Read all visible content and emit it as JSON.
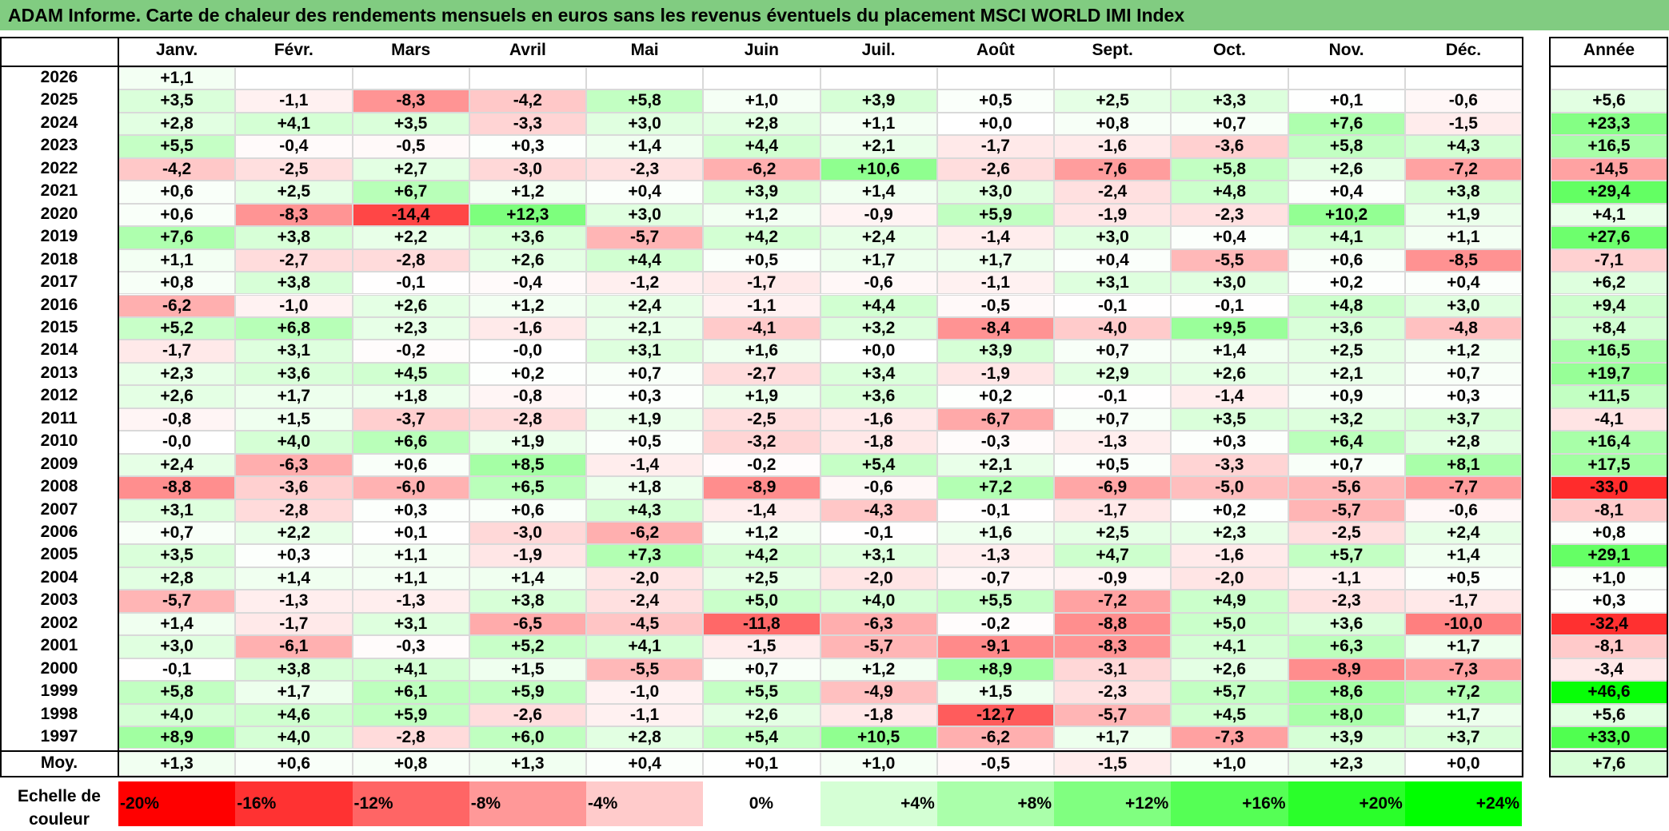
{
  "title": "ADAM Informe. Carte de chaleur des rendements mensuels en euros sans les revenus éventuels du placement MSCI WORLD IMI Index",
  "chart_data": {
    "type": "heatmap",
    "columns": [
      "Janv.",
      "Févr.",
      "Mars",
      "Avril",
      "Mai",
      "Juin",
      "Juil.",
      "Août",
      "Sept.",
      "Oct.",
      "Nov.",
      "Déc."
    ],
    "year_column": "Année",
    "rows": [
      {
        "label": "2026",
        "values": [
          "+1,1",
          "",
          "",
          "",
          "",
          "",
          "",
          "",
          "",
          "",
          "",
          ""
        ],
        "year": ""
      },
      {
        "label": "2025",
        "values": [
          "+3,5",
          "-1,1",
          "-8,3",
          "-4,2",
          "+5,8",
          "+1,0",
          "+3,9",
          "+0,5",
          "+2,5",
          "+3,3",
          "+0,1",
          "-0,6"
        ],
        "year": "+5,6"
      },
      {
        "label": "2024",
        "values": [
          "+2,8",
          "+4,1",
          "+3,5",
          "-3,3",
          "+3,0",
          "+2,8",
          "+1,1",
          "+0,0",
          "+0,8",
          "+0,7",
          "+7,6",
          "-1,5"
        ],
        "year": "+23,3"
      },
      {
        "label": "2023",
        "values": [
          "+5,5",
          "-0,4",
          "-0,5",
          "+0,3",
          "+1,4",
          "+4,4",
          "+2,1",
          "-1,7",
          "-1,6",
          "-3,6",
          "+5,8",
          "+4,3"
        ],
        "year": "+16,5"
      },
      {
        "label": "2022",
        "values": [
          "-4,2",
          "-2,5",
          "+2,7",
          "-3,0",
          "-2,3",
          "-6,2",
          "+10,6",
          "-2,6",
          "-7,6",
          "+5,8",
          "+2,6",
          "-7,2"
        ],
        "year": "-14,5"
      },
      {
        "label": "2021",
        "values": [
          "+0,6",
          "+2,5",
          "+6,7",
          "+1,2",
          "+0,4",
          "+3,9",
          "+1,4",
          "+3,0",
          "-2,4",
          "+4,8",
          "+0,4",
          "+3,8"
        ],
        "year": "+29,4"
      },
      {
        "label": "2020",
        "values": [
          "+0,6",
          "-8,3",
          "-14,4",
          "+12,3",
          "+3,0",
          "+1,2",
          "-0,9",
          "+5,9",
          "-1,9",
          "-2,3",
          "+10,2",
          "+1,9"
        ],
        "year": "+4,1"
      },
      {
        "label": "2019",
        "values": [
          "+7,6",
          "+3,8",
          "+2,2",
          "+3,6",
          "-5,7",
          "+4,2",
          "+2,4",
          "-1,4",
          "+3,0",
          "+0,4",
          "+4,1",
          "+1,1"
        ],
        "year": "+27,6"
      },
      {
        "label": "2018",
        "values": [
          "+1,1",
          "-2,7",
          "-2,8",
          "+2,6",
          "+4,4",
          "+0,5",
          "+1,7",
          "+1,7",
          "+0,4",
          "-5,5",
          "+0,6",
          "-8,5"
        ],
        "year": "-7,1"
      },
      {
        "label": "2017",
        "values": [
          "+0,8",
          "+3,8",
          "-0,1",
          "-0,4",
          "-1,2",
          "-1,7",
          "-0,6",
          "-1,1",
          "+3,1",
          "+3,0",
          "+0,2",
          "+0,4"
        ],
        "year": "+6,2"
      },
      {
        "label": "2016",
        "values": [
          "-6,2",
          "-1,0",
          "+2,6",
          "+1,2",
          "+2,4",
          "-1,1",
          "+4,4",
          "-0,5",
          "-0,1",
          "-0,1",
          "+4,8",
          "+3,0"
        ],
        "year": "+9,4"
      },
      {
        "label": "2015",
        "values": [
          "+5,2",
          "+6,8",
          "+2,3",
          "-1,6",
          "+2,1",
          "-4,1",
          "+3,2",
          "-8,4",
          "-4,0",
          "+9,5",
          "+3,6",
          "-4,8"
        ],
        "year": "+8,4"
      },
      {
        "label": "2014",
        "values": [
          "-1,7",
          "+3,1",
          "-0,2",
          "-0,0",
          "+3,1",
          "+1,6",
          "+0,0",
          "+3,9",
          "+0,7",
          "+1,4",
          "+2,5",
          "+1,2"
        ],
        "year": "+16,5"
      },
      {
        "label": "2013",
        "values": [
          "+2,3",
          "+3,6",
          "+4,5",
          "+0,2",
          "+0,7",
          "-2,7",
          "+3,4",
          "-1,9",
          "+2,9",
          "+2,6",
          "+2,1",
          "+0,7"
        ],
        "year": "+19,7"
      },
      {
        "label": "2012",
        "values": [
          "+2,6",
          "+1,7",
          "+1,8",
          "-0,8",
          "+0,3",
          "+1,9",
          "+3,6",
          "+0,2",
          "-0,1",
          "-1,4",
          "+0,9",
          "+0,3"
        ],
        "year": "+11,5"
      },
      {
        "label": "2011",
        "values": [
          "-0,8",
          "+1,5",
          "-3,7",
          "-2,8",
          "+1,9",
          "-2,5",
          "-1,6",
          "-6,7",
          "+0,7",
          "+3,5",
          "+3,2",
          "+3,7"
        ],
        "year": "-4,1"
      },
      {
        "label": "2010",
        "values": [
          "-0,0",
          "+4,0",
          "+6,6",
          "+1,9",
          "+0,5",
          "-3,2",
          "-1,8",
          "-0,3",
          "-1,3",
          "+0,3",
          "+6,4",
          "+2,8"
        ],
        "year": "+16,4"
      },
      {
        "label": "2009",
        "values": [
          "+2,4",
          "-6,3",
          "+0,6",
          "+8,5",
          "-1,4",
          "-0,2",
          "+5,4",
          "+2,1",
          "+0,5",
          "-3,3",
          "+0,7",
          "+8,1"
        ],
        "year": "+17,5"
      },
      {
        "label": "2008",
        "values": [
          "-8,8",
          "-3,6",
          "-6,0",
          "+6,5",
          "+1,8",
          "-8,9",
          "-0,6",
          "+7,2",
          "-6,9",
          "-5,0",
          "-5,6",
          "-7,7"
        ],
        "year": "-33,0"
      },
      {
        "label": "2007",
        "values": [
          "+3,1",
          "-2,8",
          "+0,3",
          "+0,6",
          "+4,3",
          "-1,4",
          "-4,3",
          "-0,1",
          "-1,7",
          "+0,2",
          "-5,7",
          "-0,6"
        ],
        "year": "-8,1"
      },
      {
        "label": "2006",
        "values": [
          "+0,7",
          "+2,2",
          "+0,1",
          "-3,0",
          "-6,2",
          "+1,2",
          "-0,1",
          "+1,6",
          "+2,5",
          "+2,3",
          "-2,5",
          "+2,4"
        ],
        "year": "+0,8"
      },
      {
        "label": "2005",
        "values": [
          "+3,5",
          "+0,3",
          "+1,1",
          "-1,9",
          "+7,3",
          "+4,2",
          "+3,1",
          "-1,3",
          "+4,7",
          "-1,6",
          "+5,7",
          "+1,4"
        ],
        "year": "+29,1"
      },
      {
        "label": "2004",
        "values": [
          "+2,8",
          "+1,4",
          "+1,1",
          "+1,4",
          "-2,0",
          "+2,5",
          "-2,0",
          "-0,7",
          "-0,9",
          "-2,0",
          "-1,1",
          "+0,5"
        ],
        "year": "+1,0"
      },
      {
        "label": "2003",
        "values": [
          "-5,7",
          "-1,3",
          "-1,3",
          "+3,8",
          "-2,4",
          "+5,0",
          "+4,0",
          "+5,5",
          "-7,2",
          "+4,9",
          "-2,3",
          "-1,7"
        ],
        "year": "+0,3"
      },
      {
        "label": "2002",
        "values": [
          "+1,4",
          "-1,7",
          "+3,1",
          "-6,5",
          "-4,5",
          "-11,8",
          "-6,3",
          "-0,2",
          "-8,8",
          "+5,0",
          "+3,6",
          "-10,0"
        ],
        "year": "-32,4"
      },
      {
        "label": "2001",
        "values": [
          "+3,0",
          "-6,1",
          "-0,3",
          "+5,2",
          "+4,1",
          "-1,5",
          "-5,7",
          "-9,1",
          "-8,3",
          "+4,1",
          "+6,3",
          "+1,7"
        ],
        "year": "-8,1"
      },
      {
        "label": "2000",
        "values": [
          "-0,1",
          "+3,8",
          "+4,1",
          "+1,5",
          "-5,5",
          "+0,7",
          "+1,2",
          "+8,9",
          "-3,1",
          "+2,6",
          "-8,9",
          "-7,3"
        ],
        "year": "-3,4"
      },
      {
        "label": "1999",
        "values": [
          "+5,8",
          "+1,7",
          "+6,1",
          "+5,9",
          "-1,0",
          "+5,5",
          "-4,9",
          "+1,5",
          "-2,3",
          "+5,7",
          "+8,6",
          "+7,2"
        ],
        "year": "+46,6"
      },
      {
        "label": "1998",
        "values": [
          "+4,0",
          "+4,6",
          "+5,9",
          "-2,6",
          "-1,1",
          "+2,6",
          "-1,8",
          "-12,7",
          "-5,7",
          "+4,5",
          "+8,0",
          "+1,7"
        ],
        "year": "+5,6"
      },
      {
        "label": "1997",
        "values": [
          "+8,9",
          "+4,0",
          "-2,8",
          "+6,0",
          "+2,8",
          "+5,4",
          "+10,5",
          "-6,2",
          "+1,7",
          "-7,3",
          "+3,9",
          "+3,7"
        ],
        "year": "+33,0"
      }
    ],
    "average": {
      "label": "Moy.",
      "values": [
        "+1,3",
        "+0,6",
        "+0,8",
        "+1,3",
        "+0,4",
        "+0,1",
        "+1,0",
        "-0,5",
        "-1,5",
        "+1,0",
        "+2,3",
        "+0,0"
      ],
      "year": "+7,6"
    },
    "color_scale": {
      "label": "Echelle de couleur",
      "stops": [
        {
          "text": "-20%",
          "value": -20,
          "color": "#ff0000"
        },
        {
          "text": "-16%",
          "value": -16,
          "color": "#ff3232"
        },
        {
          "text": "-12%",
          "value": -12,
          "color": "#ff6565"
        },
        {
          "text": "-8%",
          "value": -8,
          "color": "#ff9898"
        },
        {
          "text": "-4%",
          "value": -4,
          "color": "#ffcbcb"
        },
        {
          "text": "0%",
          "value": 0,
          "color": "#ffffff"
        },
        {
          "text": "+4%",
          "value": 4,
          "color": "#d5ffd5"
        },
        {
          "text": "+8%",
          "value": 8,
          "color": "#aaffaa"
        },
        {
          "text": "+12%",
          "value": 12,
          "color": "#80ff80"
        },
        {
          "text": "+16%",
          "value": 16,
          "color": "#55ff55"
        },
        {
          "text": "+20%",
          "value": 20,
          "color": "#2aff2a"
        },
        {
          "text": "+24%",
          "value": 24,
          "color": "#00ff00"
        }
      ]
    }
  }
}
